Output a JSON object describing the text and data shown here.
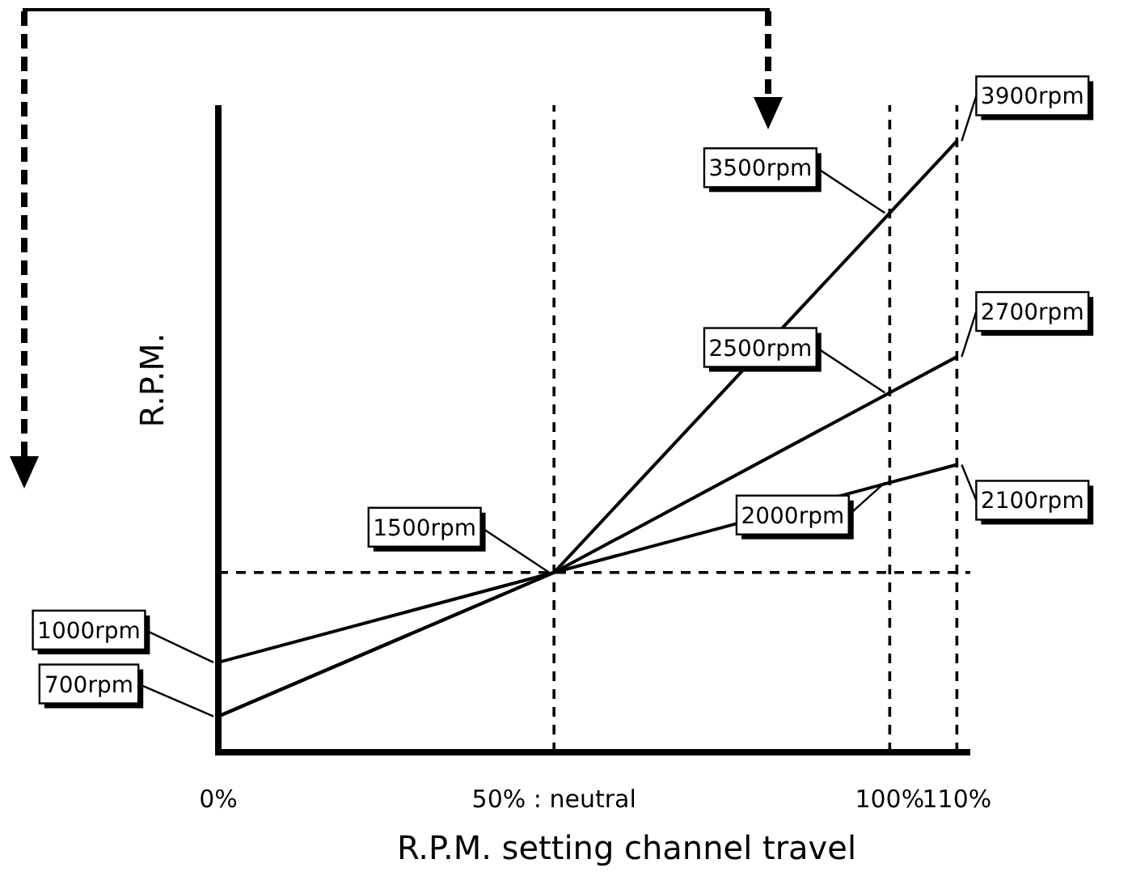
{
  "chart_data": {
    "type": "line",
    "xlabel": "R.P.M. setting channel travel",
    "ylabel": "R.P.M.",
    "x": [
      0,
      50,
      100,
      110
    ],
    "xlim": [
      0,
      112
    ],
    "xticks": [
      {
        "value": 0,
        "label": "0%"
      },
      {
        "value": 50,
        "label": "50% : neutral"
      },
      {
        "value": 100,
        "label": "100%"
      },
      {
        "value": 110,
        "label": "110%"
      }
    ],
    "ylim": [
      500,
      4100
    ],
    "tick_labels": "x",
    "line_style": "solid",
    "series": [
      {
        "color": "#000000",
        "values": [
          1000,
          1500,
          2000,
          2100
        ],
        "value_labels": [
          "1000rpm",
          null,
          "2000rpm",
          "2100rpm"
        ]
      },
      {
        "color": "#000000",
        "values": [
          700,
          1500,
          2500,
          2700
        ],
        "value_labels": [
          "700rpm",
          "1500rpm",
          "2500rpm",
          "2700rpm"
        ]
      },
      {
        "color": "#000000",
        "values": [
          700,
          1500,
          3500,
          3900
        ],
        "value_labels": [
          null,
          null,
          "3500rpm",
          "3900rpm"
        ]
      }
    ],
    "ref_lines": [
      {
        "axis": "x",
        "value": 50,
        "line_style": "dashed",
        "color": "#000000"
      },
      {
        "axis": "x",
        "value": 100,
        "line_style": "dashed",
        "color": "#000000"
      },
      {
        "axis": "x",
        "value": 110,
        "line_style": "dashed",
        "color": "#000000"
      },
      {
        "axis": "y",
        "value": 1500,
        "line_style": "dashed",
        "color": "#000000"
      }
    ]
  }
}
